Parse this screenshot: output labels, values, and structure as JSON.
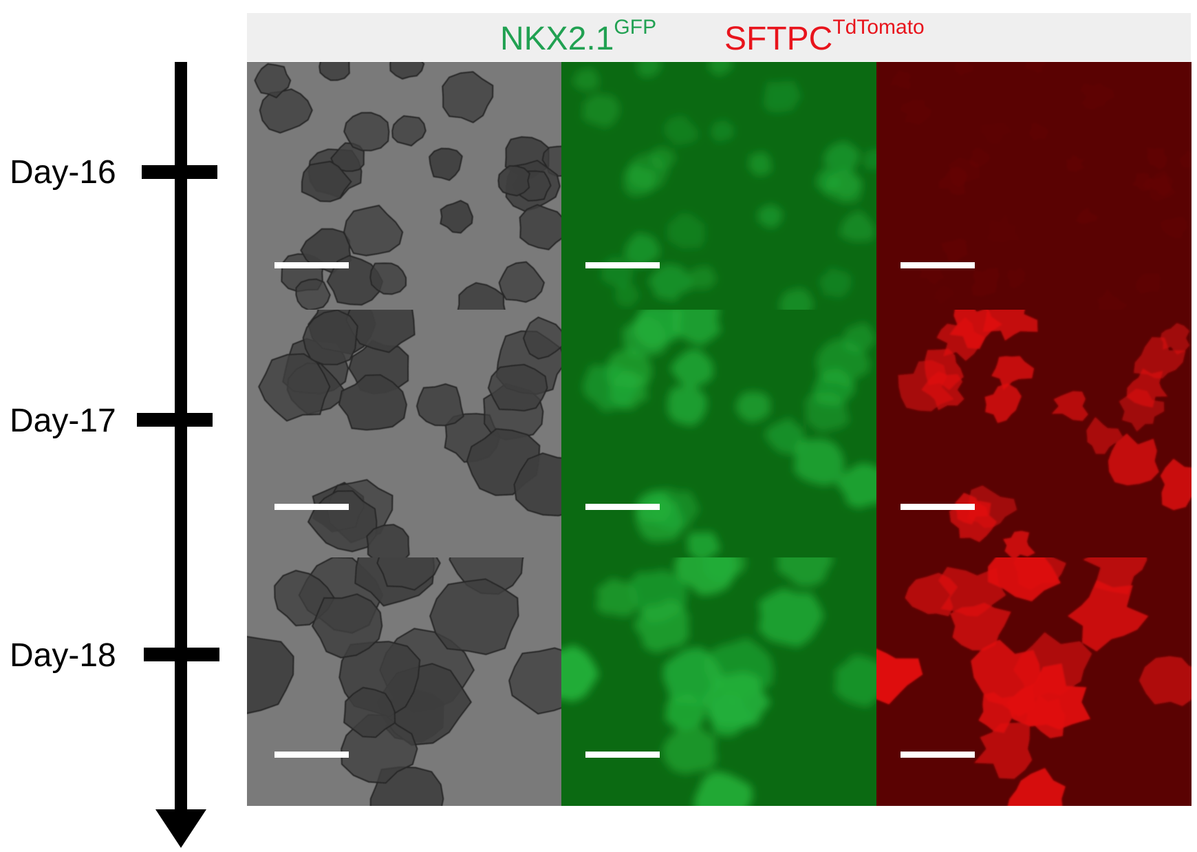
{
  "header": {
    "left_label": "NKX2.1",
    "left_sup": "GFP",
    "right_label": "SFTPC",
    "right_sup": "TdTomato",
    "left_color": "#21a152",
    "right_color": "#e8141c"
  },
  "timeline": {
    "labels": [
      "Day-16",
      "Day-17",
      "Day-18"
    ]
  },
  "panels": {
    "columns": [
      "brightfield",
      "gfp",
      "tdtomato"
    ],
    "colors": {
      "brightfield_bg": "#7a7a7a",
      "brightfield_cell": "#3f3f3f",
      "gfp_bg": "#0b6a12",
      "gfp_cell": "#23b03a",
      "tomato_bg": "#5a0202",
      "tomato_cell": "#e00f0f"
    },
    "tomato_intensity": [
      0.04,
      0.85,
      1.0
    ],
    "gfp_intensity": [
      0.55,
      0.8,
      0.95
    ]
  }
}
